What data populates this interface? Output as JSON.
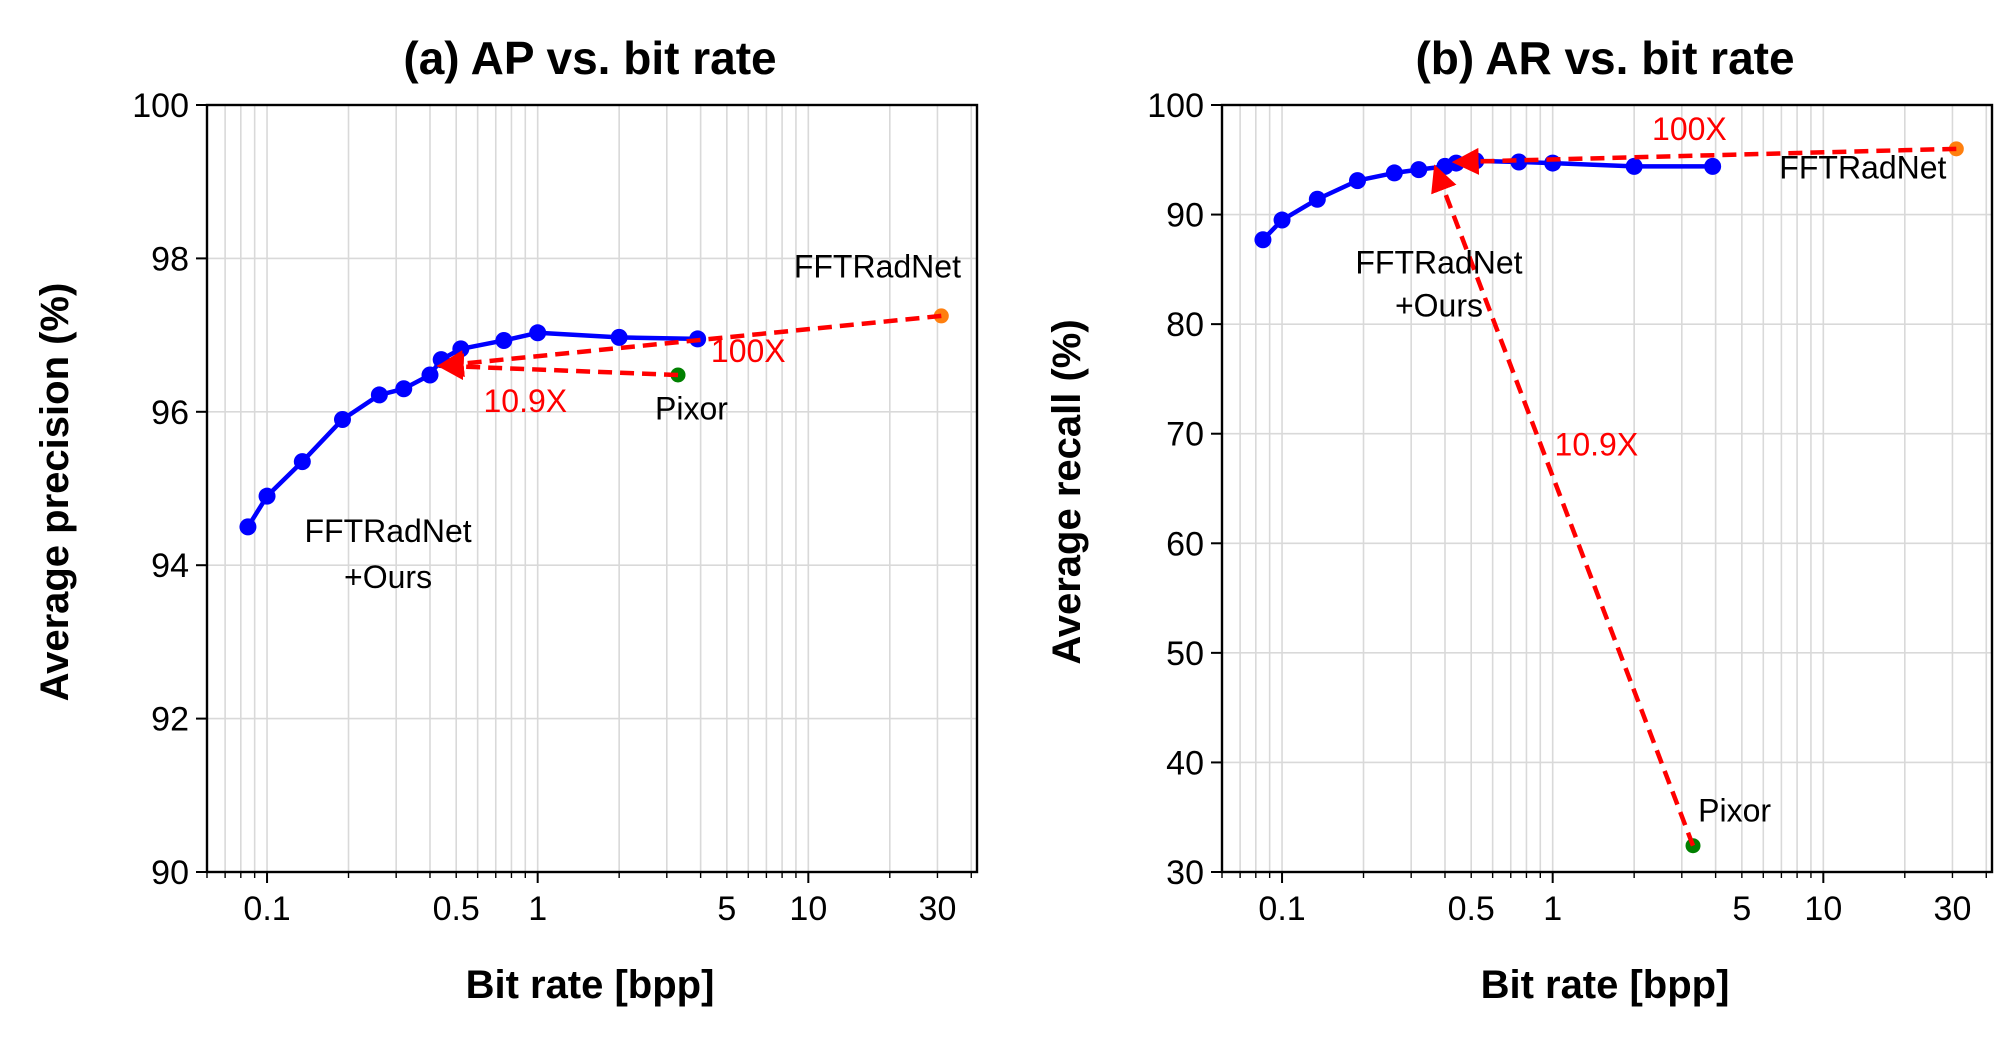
{
  "colors": {
    "ours": "#0000ff",
    "fftradnet": "#ff7f0e",
    "pixor": "#008000",
    "arrow": "#ff0000",
    "grid": "#d9d9d9"
  },
  "chart_data": [
    {
      "type": "line",
      "title": "(a) AP vs. bit rate",
      "xlabel": "Bit rate [bpp]",
      "ylabel": "Average precision (%)",
      "xscale": "log",
      "xlim": [
        0.06,
        42
      ],
      "ylim": [
        90,
        100
      ],
      "xticks": [
        0.1,
        0.5,
        1,
        5,
        10,
        30
      ],
      "xtick_labels": [
        "0.1",
        "0.5",
        "1",
        "5",
        "10",
        "30"
      ],
      "yticks": [
        90,
        92,
        94,
        96,
        98,
        100
      ],
      "ytick_labels": [
        "90",
        "92",
        "94",
        "96",
        "98",
        "100"
      ],
      "grid": true,
      "series": [
        {
          "name": "FFTRadNet +Ours",
          "x": [
            0.085,
            0.1,
            0.135,
            0.19,
            0.26,
            0.32,
            0.4,
            0.44,
            0.52,
            0.75,
            1.0,
            2.0,
            3.9
          ],
          "y": [
            94.5,
            94.9,
            95.35,
            95.9,
            96.22,
            96.3,
            96.48,
            96.68,
            96.82,
            96.93,
            97.03,
            96.97,
            96.95
          ]
        },
        {
          "name": "FFTRadNet",
          "x": [
            31
          ],
          "y": [
            97.25
          ]
        },
        {
          "name": "Pixor",
          "x": [
            3.3
          ],
          "y": [
            96.48
          ]
        }
      ],
      "arrows": [
        {
          "label": "100X",
          "from": [
            31,
            97.25
          ],
          "to": [
            0.44,
            96.6
          ]
        },
        {
          "label": "10.9X",
          "from": [
            3.3,
            96.48
          ],
          "to": [
            0.44,
            96.6
          ]
        }
      ],
      "annotations": [
        {
          "text": "FFTRadNet",
          "x": 18,
          "y": 97.75
        },
        {
          "text": "100X",
          "x": 6,
          "y": 96.65
        },
        {
          "text": "10.9X",
          "x": 0.9,
          "y": 96.0
        },
        {
          "text": "Pixor",
          "x": 3.7,
          "y": 95.9
        },
        {
          "text": "FFTRadNet",
          "x": 0.28,
          "y": 94.3
        },
        {
          "text": "+Ours",
          "x": 0.28,
          "y": 93.7
        }
      ]
    },
    {
      "type": "line",
      "title": "(b) AR vs. bit rate",
      "xlabel": "Bit rate [bpp]",
      "ylabel": "Average recall (%)",
      "xscale": "log",
      "xlim": [
        0.06,
        42
      ],
      "ylim": [
        30,
        100
      ],
      "xticks": [
        0.1,
        0.5,
        1,
        5,
        10,
        30
      ],
      "xtick_labels": [
        "0.1",
        "0.5",
        "1",
        "5",
        "10",
        "30"
      ],
      "yticks": [
        30,
        40,
        50,
        60,
        70,
        80,
        90,
        100
      ],
      "ytick_labels": [
        "30",
        "40",
        "50",
        "60",
        "70",
        "80",
        "90",
        "100"
      ],
      "grid": true,
      "series": [
        {
          "name": "FFTRadNet +Ours",
          "x": [
            0.085,
            0.1,
            0.135,
            0.19,
            0.26,
            0.32,
            0.4,
            0.44,
            0.52,
            0.75,
            1.0,
            2.0,
            3.9
          ],
          "y": [
            87.7,
            89.5,
            91.4,
            93.1,
            93.8,
            94.1,
            94.4,
            94.7,
            94.9,
            94.8,
            94.7,
            94.4,
            94.4
          ]
        },
        {
          "name": "FFTRadNet",
          "x": [
            31
          ],
          "y": [
            96.0
          ]
        },
        {
          "name": "Pixor",
          "x": [
            3.3
          ],
          "y": [
            32.4
          ]
        }
      ],
      "arrows": [
        {
          "label": "100X",
          "from": [
            31,
            96.0
          ],
          "to": [
            0.44,
            94.8
          ]
        },
        {
          "label": "10.9X",
          "from": [
            3.3,
            32.4
          ],
          "to": [
            0.37,
            94.2
          ]
        }
      ],
      "annotations": [
        {
          "text": "100X",
          "x": 3.2,
          "y": 96.8
        },
        {
          "text": "FFTRadNet",
          "x": 14,
          "y": 93.3
        },
        {
          "text": "FFTRadNet",
          "x": 0.38,
          "y": 84.6
        },
        {
          "text": "+Ours",
          "x": 0.38,
          "y": 80.7
        },
        {
          "text": "10.9X",
          "x": 1.45,
          "y": 68.0
        },
        {
          "text": "Pixor",
          "x": 4.7,
          "y": 34.6
        }
      ]
    }
  ]
}
